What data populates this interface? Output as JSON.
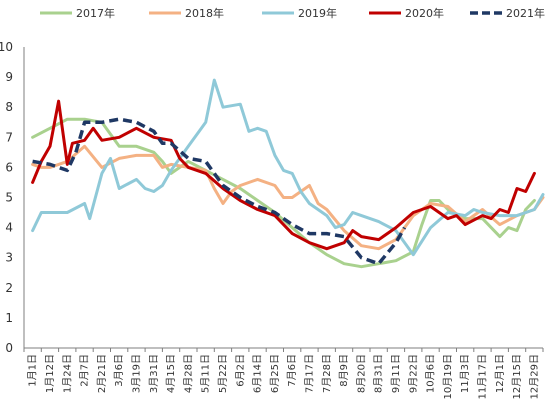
{
  "chart_data": {
    "type": "line",
    "title": "",
    "xlabel": "",
    "ylabel": "",
    "ylim": [
      0,
      10
    ],
    "yticks": [
      "0",
      "1",
      "2",
      "3",
      "4",
      "5",
      "6",
      "7",
      "8",
      "9",
      "10"
    ],
    "grid": false,
    "legend_position": "top",
    "categories": [
      "1月1日",
      "1月12日",
      "1月24日",
      "2月7日",
      "2月21日",
      "3月6日",
      "3月19日",
      "3月31日",
      "4月15日",
      "4月28日",
      "5月11日",
      "5月22日",
      "6月2日",
      "6月14日",
      "6月25日",
      "7月6日",
      "7月17日",
      "7月28日",
      "8月9日",
      "8月20日",
      "8月31日",
      "9月11日",
      "9月22日",
      "10月6日",
      "10月19日",
      "11月3日",
      "11月17日",
      "12月1日",
      "12月15日",
      "12月29日"
    ],
    "series": [
      {
        "name": "2017年",
        "color": "#a9d18e",
        "dash": "solid",
        "width": 3,
        "points": [
          [
            0,
            7.0
          ],
          [
            1,
            7.3
          ],
          [
            2,
            7.6
          ],
          [
            3,
            7.6
          ],
          [
            4,
            7.5
          ],
          [
            5,
            6.7
          ],
          [
            6,
            6.7
          ],
          [
            7,
            6.5
          ],
          [
            7.5,
            6.2
          ],
          [
            8,
            5.8
          ],
          [
            9,
            6.2
          ],
          [
            10,
            5.9
          ],
          [
            11,
            5.6
          ],
          [
            12,
            5.3
          ],
          [
            13,
            4.9
          ],
          [
            14,
            4.5
          ],
          [
            15,
            4.0
          ],
          [
            16,
            3.5
          ],
          [
            17,
            3.1
          ],
          [
            18,
            2.8
          ],
          [
            19,
            2.7
          ],
          [
            20,
            2.8
          ],
          [
            21,
            2.9
          ],
          [
            22,
            3.2
          ],
          [
            22.5,
            4.1
          ],
          [
            23,
            4.9
          ],
          [
            23.5,
            4.9
          ],
          [
            24,
            4.6
          ],
          [
            25,
            4.3
          ],
          [
            26,
            4.3
          ],
          [
            27,
            3.7
          ],
          [
            27.5,
            4.0
          ],
          [
            28,
            3.9
          ],
          [
            28.5,
            4.6
          ],
          [
            29,
            4.9
          ]
        ]
      },
      {
        "name": "2018年",
        "color": "#f4b183",
        "dash": "solid",
        "width": 3,
        "points": [
          [
            0,
            6.1
          ],
          [
            0.5,
            6.0
          ],
          [
            1,
            6.0
          ],
          [
            2,
            6.2
          ],
          [
            3,
            6.7
          ],
          [
            4,
            6.0
          ],
          [
            5,
            6.3
          ],
          [
            6,
            6.4
          ],
          [
            7,
            6.4
          ],
          [
            7.5,
            6.0
          ],
          [
            8,
            6.1
          ],
          [
            9,
            6.0
          ],
          [
            10,
            5.9
          ],
          [
            10.5,
            5.3
          ],
          [
            11,
            4.8
          ],
          [
            11.5,
            5.2
          ],
          [
            12,
            5.4
          ],
          [
            13,
            5.6
          ],
          [
            14,
            5.4
          ],
          [
            14.5,
            5.0
          ],
          [
            15,
            5.0
          ],
          [
            16,
            5.4
          ],
          [
            16.5,
            4.8
          ],
          [
            17,
            4.6
          ],
          [
            18,
            3.9
          ],
          [
            19,
            3.4
          ],
          [
            20,
            3.3
          ],
          [
            21,
            3.6
          ],
          [
            22,
            4.4
          ],
          [
            23,
            4.8
          ],
          [
            24,
            4.7
          ],
          [
            25,
            4.2
          ],
          [
            26,
            4.6
          ],
          [
            27,
            4.1
          ],
          [
            28,
            4.4
          ],
          [
            29,
            4.6
          ],
          [
            29.5,
            5.0
          ]
        ]
      },
      {
        "name": "2019年",
        "color": "#8fc9d8",
        "dash": "solid",
        "width": 3,
        "points": [
          [
            0,
            3.9
          ],
          [
            0.5,
            4.5
          ],
          [
            1,
            4.5
          ],
          [
            2,
            4.5
          ],
          [
            3,
            4.8
          ],
          [
            3.3,
            4.3
          ],
          [
            4,
            5.8
          ],
          [
            4.5,
            6.3
          ],
          [
            5,
            5.3
          ],
          [
            6,
            5.6
          ],
          [
            6.5,
            5.3
          ],
          [
            7,
            5.2
          ],
          [
            7.5,
            5.4
          ],
          [
            8,
            5.9
          ],
          [
            9,
            6.7
          ],
          [
            10,
            7.5
          ],
          [
            10.5,
            8.9
          ],
          [
            11,
            8.0
          ],
          [
            12,
            8.1
          ],
          [
            12.5,
            7.2
          ],
          [
            13,
            7.3
          ],
          [
            13.5,
            7.2
          ],
          [
            14,
            6.4
          ],
          [
            14.5,
            5.9
          ],
          [
            15,
            5.8
          ],
          [
            15.5,
            5.2
          ],
          [
            16,
            4.8
          ],
          [
            17,
            4.4
          ],
          [
            17.5,
            4.0
          ],
          [
            18,
            4.1
          ],
          [
            18.5,
            4.5
          ],
          [
            19,
            4.4
          ],
          [
            20,
            4.2
          ],
          [
            21,
            3.9
          ],
          [
            22,
            3.1
          ],
          [
            23,
            4.0
          ],
          [
            24,
            4.5
          ],
          [
            25,
            4.4
          ],
          [
            25.5,
            4.6
          ],
          [
            26,
            4.5
          ],
          [
            27,
            4.4
          ],
          [
            28,
            4.4
          ],
          [
            29,
            4.6
          ],
          [
            29.5,
            5.1
          ]
        ]
      },
      {
        "name": "2020年",
        "color": "#c00000",
        "dash": "solid",
        "width": 3,
        "points": [
          [
            0,
            5.5
          ],
          [
            0.5,
            6.2
          ],
          [
            1,
            6.7
          ],
          [
            1.5,
            8.2
          ],
          [
            2,
            6.1
          ],
          [
            2.3,
            6.8
          ],
          [
            3,
            6.9
          ],
          [
            3.5,
            7.3
          ],
          [
            4,
            6.9
          ],
          [
            5,
            7.0
          ],
          [
            6,
            7.3
          ],
          [
            7,
            7.0
          ],
          [
            8,
            6.9
          ],
          [
            8.5,
            6.3
          ],
          [
            9,
            6.0
          ],
          [
            10,
            5.8
          ],
          [
            11,
            5.3
          ],
          [
            12,
            4.9
          ],
          [
            13,
            4.6
          ],
          [
            14,
            4.4
          ],
          [
            15,
            3.8
          ],
          [
            16,
            3.5
          ],
          [
            17,
            3.3
          ],
          [
            18,
            3.5
          ],
          [
            18.5,
            3.9
          ],
          [
            19,
            3.7
          ],
          [
            20,
            3.6
          ],
          [
            21,
            4.0
          ],
          [
            22,
            4.5
          ],
          [
            22.5,
            4.6
          ],
          [
            23,
            4.7
          ],
          [
            24,
            4.3
          ],
          [
            24.5,
            4.4
          ],
          [
            25,
            4.1
          ],
          [
            26,
            4.4
          ],
          [
            26.5,
            4.3
          ],
          [
            27,
            4.6
          ],
          [
            27.5,
            4.5
          ],
          [
            28,
            5.3
          ],
          [
            28.5,
            5.2
          ],
          [
            29,
            5.8
          ]
        ]
      },
      {
        "name": "2021年",
        "color": "#1f3864",
        "dash": "dashed",
        "width": 3.5,
        "points": [
          [
            0,
            6.2
          ],
          [
            1,
            6.1
          ],
          [
            2,
            5.9
          ],
          [
            2.5,
            6.5
          ],
          [
            3,
            7.5
          ],
          [
            4,
            7.5
          ],
          [
            5,
            7.6
          ],
          [
            6,
            7.5
          ],
          [
            7,
            7.2
          ],
          [
            7.5,
            6.8
          ],
          [
            8,
            6.8
          ],
          [
            9,
            6.3
          ],
          [
            10,
            6.2
          ],
          [
            11,
            5.4
          ],
          [
            12,
            5.0
          ],
          [
            13,
            4.7
          ],
          [
            14,
            4.5
          ],
          [
            15,
            4.1
          ],
          [
            16,
            3.8
          ],
          [
            17,
            3.8
          ],
          [
            18,
            3.7
          ],
          [
            19,
            3.0
          ],
          [
            20,
            2.8
          ],
          [
            21,
            3.5
          ],
          [
            21.5,
            4.0
          ]
        ]
      }
    ]
  }
}
